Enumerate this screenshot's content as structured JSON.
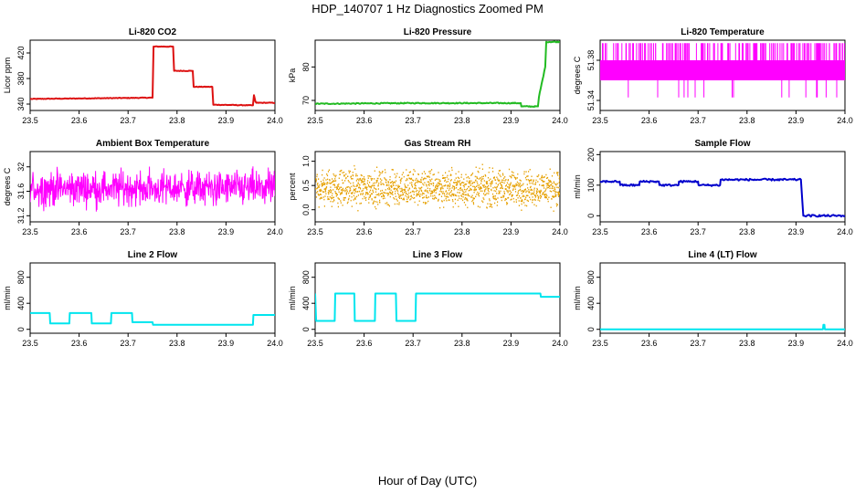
{
  "figure": {
    "title": "HDP_140707  1 Hz Diagnostics Zoomed PM",
    "xlabel": "Hour of Day (UTC)"
  },
  "chart_data": [
    {
      "type": "line",
      "title": "Li-820 CO2",
      "ylabel": "Licor ppm",
      "color": "#dd1111",
      "xlim": [
        23.5,
        24.0
      ],
      "ylim": [
        330,
        440
      ],
      "x_ticks": [
        "23.5",
        "23.6",
        "23.7",
        "23.8",
        "23.9",
        "24.0"
      ],
      "y_ticks": [
        340,
        380,
        420
      ],
      "noise": 0.5,
      "x": [
        23.5,
        23.75,
        23.752,
        23.792,
        23.794,
        23.832,
        23.834,
        23.872,
        23.874,
        23.955,
        23.957,
        23.96,
        23.962,
        24.0
      ],
      "y": [
        348,
        350,
        430,
        430,
        392,
        392,
        367,
        367,
        339,
        338,
        354,
        344,
        342,
        342
      ]
    },
    {
      "type": "line",
      "title": "Li-820 Pressure",
      "ylabel": "kPa",
      "color": "#22bb22",
      "xlim": [
        23.5,
        24.0
      ],
      "ylim": [
        67,
        88
      ],
      "x_ticks": [
        "23.5",
        "23.6",
        "23.7",
        "23.8",
        "23.9",
        "24.0"
      ],
      "y_ticks": [
        70,
        80
      ],
      "noise": 0.15,
      "x": [
        23.5,
        23.7,
        23.92,
        23.921,
        23.955,
        23.957,
        23.97,
        23.972,
        24.0
      ],
      "y": [
        69.0,
        69.2,
        69.2,
        68.2,
        68.2,
        71,
        80,
        87.5,
        87.5
      ]
    },
    {
      "type": "line",
      "title": "Li-820 Temperature",
      "ylabel": "degrees C",
      "color": "#ff00ff",
      "xlim": [
        23.5,
        24.0
      ],
      "ylim": [
        51.33,
        51.4
      ],
      "x_ticks": [
        "23.5",
        "23.6",
        "23.7",
        "23.8",
        "23.9",
        "24.0"
      ],
      "y_ticks": [
        51.34,
        51.38
      ],
      "style": "band",
      "band_low": 51.36,
      "band_high": 51.38,
      "spike_high": 51.397,
      "spike_low": 51.343
    },
    {
      "type": "line",
      "title": "Ambient Box Temperature",
      "ylabel": "degrees C",
      "color": "#ff00ff",
      "xlim": [
        23.5,
        24.0
      ],
      "ylim": [
        31.1,
        32.25
      ],
      "x_ticks": [
        "23.5",
        "23.6",
        "23.7",
        "23.8",
        "23.9",
        "24.0"
      ],
      "y_ticks": [
        31.2,
        31.6,
        32.0
      ],
      "style": "noise",
      "center": 31.65,
      "amplitude": 0.35
    },
    {
      "type": "scatter",
      "title": "Gas Stream RH",
      "ylabel": "percent",
      "color": "#e6a000",
      "xlim": [
        23.5,
        24.0
      ],
      "ylim": [
        -0.25,
        1.2
      ],
      "x_ticks": [
        "23.5",
        "23.6",
        "23.7",
        "23.8",
        "23.9",
        "24.0"
      ],
      "y_ticks": [
        "0.0",
        "0.5",
        "1.0"
      ],
      "style": "dots",
      "center": 0.45,
      "amplitude": 0.35
    },
    {
      "type": "line",
      "title": "Sample Flow",
      "ylabel": "ml/min",
      "color": "#0000cc",
      "xlim": [
        23.5,
        24.0
      ],
      "ylim": [
        -20,
        210
      ],
      "x_ticks": [
        "23.5",
        "23.6",
        "23.7",
        "23.8",
        "23.9",
        "24.0"
      ],
      "y_ticks": [
        0,
        100,
        200
      ],
      "noise": 3,
      "x": [
        23.5,
        23.54,
        23.541,
        23.58,
        23.581,
        23.62,
        23.621,
        23.66,
        23.661,
        23.7,
        23.701,
        23.745,
        23.746,
        23.91,
        23.915,
        24.0
      ],
      "y": [
        112,
        112,
        100,
        100,
        112,
        112,
        100,
        100,
        112,
        112,
        100,
        100,
        118,
        118,
        0,
        0
      ]
    },
    {
      "type": "line",
      "title": "Line 2 Flow",
      "ylabel": "ml/min",
      "color": "#00e5ee",
      "xlim": [
        23.5,
        24.0
      ],
      "ylim": [
        -60,
        1020
      ],
      "x_ticks": [
        "23.5",
        "23.6",
        "23.7",
        "23.8",
        "23.9",
        "24.0"
      ],
      "y_ticks": [
        0,
        400,
        800
      ],
      "noise": 0,
      "x": [
        23.5,
        23.54,
        23.541,
        23.58,
        23.581,
        23.625,
        23.626,
        23.665,
        23.666,
        23.708,
        23.709,
        23.75,
        23.751,
        23.955,
        23.956,
        24.0
      ],
      "y": [
        250,
        250,
        90,
        90,
        250,
        250,
        90,
        90,
        250,
        250,
        110,
        110,
        70,
        70,
        220,
        220
      ]
    },
    {
      "type": "line",
      "title": "Line 3 Flow",
      "ylabel": "ml/min",
      "color": "#00e5ee",
      "xlim": [
        23.5,
        24.0
      ],
      "ylim": [
        -60,
        1020
      ],
      "x_ticks": [
        "23.5",
        "23.6",
        "23.7",
        "23.8",
        "23.9",
        "24.0"
      ],
      "y_ticks": [
        0,
        400,
        800
      ],
      "noise": 0,
      "x": [
        23.5,
        23.502,
        23.54,
        23.541,
        23.58,
        23.581,
        23.622,
        23.623,
        23.665,
        23.666,
        23.705,
        23.706,
        23.96,
        23.961,
        24.0
      ],
      "y": [
        550,
        130,
        130,
        550,
        550,
        130,
        130,
        550,
        550,
        130,
        130,
        550,
        550,
        500,
        500
      ]
    },
    {
      "type": "line",
      "title": "Line 4 (LT) Flow",
      "ylabel": "ml/min",
      "color": "#00e5ee",
      "xlim": [
        23.5,
        24.0
      ],
      "ylim": [
        -60,
        1020
      ],
      "x_ticks": [
        "23.5",
        "23.6",
        "23.7",
        "23.8",
        "23.9",
        "24.0"
      ],
      "y_ticks": [
        0,
        400,
        800
      ],
      "noise": 0,
      "x": [
        23.5,
        23.955,
        23.956,
        23.958,
        23.959,
        24.0
      ],
      "y": [
        0,
        0,
        70,
        70,
        0,
        0
      ]
    }
  ]
}
